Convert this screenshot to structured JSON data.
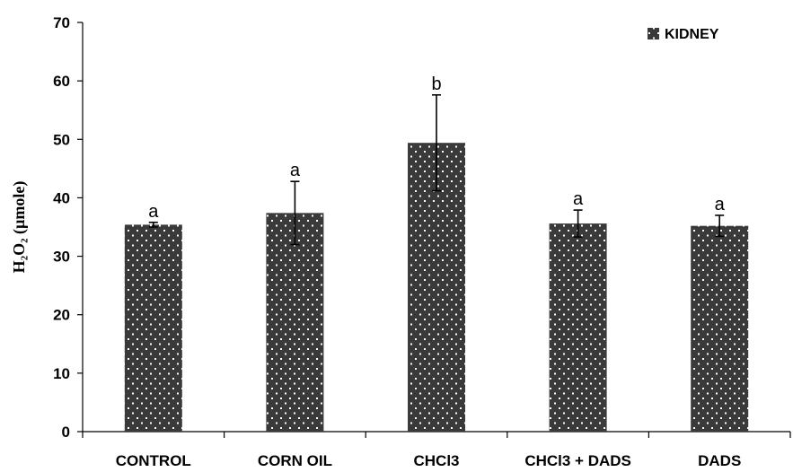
{
  "chart_data": {
    "type": "bar",
    "categories": [
      "CONTROL",
      "CORN OIL",
      "CHCl3",
      "CHCl3 + DADS",
      "DADS"
    ],
    "series": [
      {
        "name": "KIDNEY",
        "values": [
          35.4,
          37.4,
          49.4,
          35.6,
          35.2
        ],
        "error": [
          0.4,
          5.4,
          8.2,
          2.3,
          1.8
        ],
        "significance": [
          "a",
          "a",
          "b",
          "a",
          "a"
        ],
        "color": "#3a3a3a"
      }
    ],
    "ylabel": "H₂O₂ (µmole)",
    "ylim": [
      0,
      70
    ],
    "yticks": [
      0,
      10,
      20,
      30,
      40,
      50,
      60,
      70
    ],
    "legend_position": "top-right",
    "grid": false,
    "bar_pattern": "dotted"
  }
}
